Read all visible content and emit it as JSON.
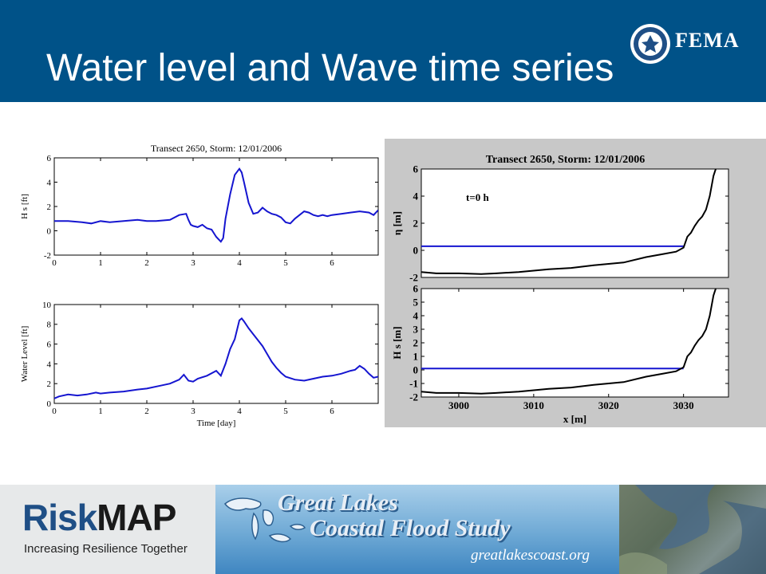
{
  "header": {
    "title": "Water level and Wave time series",
    "logo_text": "FEMA",
    "seal_icon": "dhs-seal-icon",
    "background_color": "#005288"
  },
  "chart_data": [
    {
      "type": "line",
      "title": "Transect 2650, Storm: 12/01/2006",
      "xlabel": "",
      "ylabel": "H s [ft]",
      "xlim": [
        0,
        7
      ],
      "ylim": [
        -2,
        6
      ],
      "xticks": [
        "0",
        "1",
        "2",
        "3",
        "4",
        "5",
        "6"
      ],
      "yticks": [
        "-2",
        "0",
        "2",
        "4",
        "6"
      ],
      "series": [
        {
          "color": "#1515d0",
          "x": [
            0,
            0.3,
            0.6,
            0.8,
            1.0,
            1.2,
            1.5,
            1.8,
            2.0,
            2.2,
            2.5,
            2.7,
            2.85,
            2.9,
            2.95,
            3.0,
            3.1,
            3.2,
            3.3,
            3.4,
            3.5,
            3.6,
            3.65,
            3.7,
            3.8,
            3.9,
            4.0,
            4.05,
            4.1,
            4.2,
            4.3,
            4.4,
            4.5,
            4.6,
            4.7,
            4.8,
            4.9,
            5.0,
            5.1,
            5.2,
            5.3,
            5.4,
            5.5,
            5.6,
            5.7,
            5.8,
            5.9,
            6.0,
            6.2,
            6.4,
            6.6,
            6.8,
            6.9,
            7.0
          ],
          "y": [
            0.8,
            0.8,
            0.7,
            0.6,
            0.8,
            0.7,
            0.8,
            0.9,
            0.8,
            0.8,
            0.9,
            1.3,
            1.4,
            0.9,
            0.5,
            0.4,
            0.3,
            0.5,
            0.2,
            0.1,
            -0.5,
            -0.9,
            -0.6,
            1.0,
            3.0,
            4.6,
            5.1,
            4.8,
            4.0,
            2.3,
            1.4,
            1.5,
            1.9,
            1.6,
            1.4,
            1.3,
            1.1,
            0.7,
            0.6,
            1.0,
            1.3,
            1.6,
            1.5,
            1.3,
            1.2,
            1.3,
            1.2,
            1.3,
            1.4,
            1.5,
            1.6,
            1.5,
            1.3,
            1.7
          ]
        }
      ]
    },
    {
      "type": "line",
      "title": "",
      "xlabel": "Time [day]",
      "ylabel": "Water Level [ft]",
      "xlim": [
        0,
        7
      ],
      "ylim": [
        0,
        10
      ],
      "xticks": [
        "0",
        "1",
        "2",
        "3",
        "4",
        "5",
        "6"
      ],
      "yticks": [
        "0",
        "2",
        "4",
        "6",
        "8",
        "10"
      ],
      "series": [
        {
          "color": "#1515d0",
          "x": [
            0,
            0.1,
            0.3,
            0.5,
            0.7,
            0.9,
            1.0,
            1.2,
            1.5,
            1.8,
            2.0,
            2.3,
            2.5,
            2.7,
            2.8,
            2.9,
            3.0,
            3.1,
            3.3,
            3.5,
            3.6,
            3.7,
            3.8,
            3.9,
            4.0,
            4.05,
            4.1,
            4.2,
            4.3,
            4.4,
            4.5,
            4.6,
            4.7,
            4.8,
            4.9,
            5.0,
            5.2,
            5.4,
            5.6,
            5.8,
            6.0,
            6.2,
            6.4,
            6.5,
            6.6,
            6.7,
            6.8,
            6.9,
            7.0
          ],
          "y": [
            0.5,
            0.7,
            0.9,
            0.8,
            0.9,
            1.1,
            1.0,
            1.1,
            1.2,
            1.4,
            1.5,
            1.8,
            2.0,
            2.4,
            2.9,
            2.3,
            2.2,
            2.5,
            2.8,
            3.3,
            2.8,
            4.0,
            5.5,
            6.5,
            8.4,
            8.6,
            8.3,
            7.6,
            7.0,
            6.4,
            5.8,
            5.0,
            4.2,
            3.6,
            3.1,
            2.7,
            2.4,
            2.3,
            2.5,
            2.7,
            2.8,
            3.0,
            3.3,
            3.4,
            3.8,
            3.5,
            3.0,
            2.6,
            2.7
          ]
        }
      ]
    },
    {
      "type": "line",
      "title": "Transect 2650, Storm: 12/01/2006",
      "annotation": "t=0 h",
      "xlabel": "",
      "ylabel": "η [m]",
      "xlim": [
        2995,
        3036
      ],
      "ylim": [
        -2,
        6
      ],
      "xticks": [],
      "yticks": [
        "-2",
        "0",
        "2",
        "4",
        "6"
      ],
      "series": [
        {
          "color": "#1515d0",
          "x": [
            2995,
            3030
          ],
          "y": [
            0.3,
            0.3
          ]
        },
        {
          "color": "#000000",
          "x": [
            2995,
            2997,
            3000,
            3003,
            3005,
            3008,
            3010,
            3012,
            3015,
            3018,
            3020,
            3022,
            3025,
            3027,
            3029,
            3030,
            3030.5,
            3031,
            3031.5,
            3032,
            3032.5,
            3033,
            3033.5,
            3034,
            3034.3
          ],
          "y": [
            -1.6,
            -1.7,
            -1.7,
            -1.75,
            -1.7,
            -1.6,
            -1.5,
            -1.4,
            -1.3,
            -1.1,
            -1.0,
            -0.9,
            -0.5,
            -0.3,
            -0.1,
            0.2,
            1.0,
            1.3,
            1.8,
            2.2,
            2.5,
            3.0,
            4.0,
            5.5,
            6.0
          ]
        }
      ]
    },
    {
      "type": "line",
      "title": "",
      "xlabel": "x [m]",
      "ylabel": "H s [m]",
      "xlim": [
        2995,
        3036
      ],
      "ylim": [
        -2,
        6
      ],
      "xticks": [
        "3000",
        "3010",
        "3020",
        "3030"
      ],
      "yticks": [
        "-2",
        "-1",
        "0",
        "1",
        "2",
        "3",
        "4",
        "5",
        "6"
      ],
      "series": [
        {
          "color": "#1515d0",
          "x": [
            2995,
            3030
          ],
          "y": [
            0.1,
            0.1
          ]
        },
        {
          "color": "#000000",
          "x": [
            2995,
            2997,
            3000,
            3003,
            3005,
            3008,
            3010,
            3012,
            3015,
            3018,
            3020,
            3022,
            3025,
            3027,
            3029,
            3030,
            3030.5,
            3031,
            3031.5,
            3032,
            3032.5,
            3033,
            3033.5,
            3034,
            3034.3
          ],
          "y": [
            -1.6,
            -1.7,
            -1.7,
            -1.75,
            -1.7,
            -1.6,
            -1.5,
            -1.4,
            -1.3,
            -1.1,
            -1.0,
            -0.9,
            -0.5,
            -0.3,
            -0.1,
            0.2,
            1.0,
            1.3,
            1.8,
            2.2,
            2.5,
            3.0,
            4.0,
            5.5,
            6.0
          ]
        }
      ]
    }
  ],
  "footer": {
    "riskmap_risk": "Risk",
    "riskmap_map": "MAP",
    "riskmap_tagline": "Increasing Resilience Together",
    "gl_title_line1": "Great Lakes",
    "gl_title_line2": "Coastal Flood Study",
    "gl_url": "greatlakescoast.org",
    "gl_map_icon": "great-lakes-map-icon",
    "satellite_icon": "satellite-image-icon"
  }
}
